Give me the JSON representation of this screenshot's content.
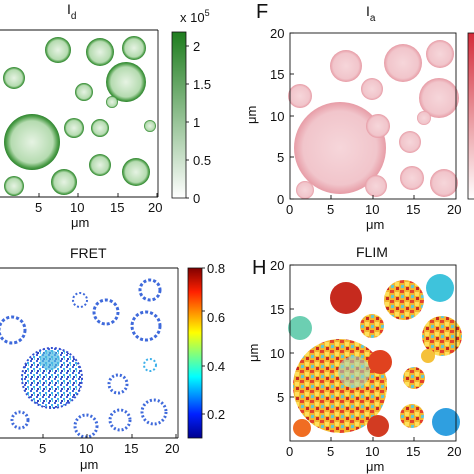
{
  "figure": {
    "panels": [
      {
        "id": "top-left",
        "letter": "",
        "title_main": "I",
        "title_sub": "d",
        "x_ticks": [
          "5",
          "10",
          "15",
          "20"
        ],
        "y_ticks": [],
        "x_unit": "μm",
        "y_unit": "",
        "colorbar_ticks": [
          "2",
          "1.5",
          "1",
          "0.5",
          "0"
        ],
        "colorbar_exponent_base": "x 10",
        "colorbar_exponent_power": "5",
        "colors": {
          "high": "#1e7d1e",
          "low": "#ffffff"
        }
      },
      {
        "id": "top-right",
        "letter": "F",
        "title_main": "I",
        "title_sub": "a",
        "x_ticks": [
          "0",
          "5",
          "10",
          "15",
          "20"
        ],
        "y_ticks": [
          "20",
          "15",
          "10",
          "5",
          "0"
        ],
        "x_unit": "μm",
        "y_unit": "μm",
        "colors": {
          "high": "#d42c3a",
          "low": "#ffffff"
        }
      },
      {
        "id": "bottom-left",
        "letter": "",
        "title_main": "FRET",
        "title_sub": "",
        "x_ticks": [
          "5",
          "10",
          "15",
          "20"
        ],
        "y_ticks": [],
        "x_unit": "μm",
        "y_unit": "",
        "colorbar_ticks": [
          "0.8",
          "0.6",
          "0.4",
          "0.2"
        ],
        "colors": {
          "scale": "jet"
        }
      },
      {
        "id": "bottom-right",
        "letter": "H",
        "title_main": "FLIM",
        "title_sub": "",
        "x_ticks": [
          "0",
          "5",
          "10",
          "15",
          "20"
        ],
        "y_ticks": [
          "20",
          "15",
          "10",
          "5"
        ],
        "x_unit": "μm",
        "y_unit": "μm",
        "colors": {
          "scale": "jet"
        }
      }
    ]
  }
}
